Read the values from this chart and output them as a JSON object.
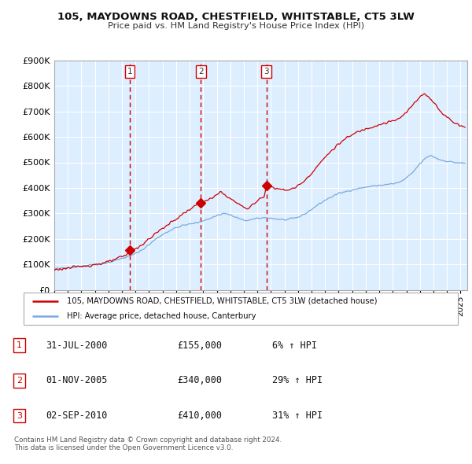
{
  "title": "105, MAYDOWNS ROAD, CHESTFIELD, WHITSTABLE, CT5 3LW",
  "subtitle": "Price paid vs. HM Land Registry's House Price Index (HPI)",
  "legend_line1": "105, MAYDOWNS ROAD, CHESTFIELD, WHITSTABLE, CT5 3LW (detached house)",
  "legend_line2": "HPI: Average price, detached house, Canterbury",
  "footer": "Contains HM Land Registry data © Crown copyright and database right 2024.\nThis data is licensed under the Open Government Licence v3.0.",
  "sales": [
    {
      "num": 1,
      "date": "31-JUL-2000",
      "price": 155000,
      "pct": "6%",
      "dir": "↑"
    },
    {
      "num": 2,
      "date": "01-NOV-2005",
      "price": 340000,
      "pct": "29%",
      "dir": "↑"
    },
    {
      "num": 3,
      "date": "02-SEP-2010",
      "price": 410000,
      "pct": "31%",
      "dir": "↑"
    }
  ],
  "sale_years": [
    2000.58,
    2005.83,
    2010.67
  ],
  "sale_prices": [
    155000,
    340000,
    410000
  ],
  "vline_color": "#cc0000",
  "price_line_color": "#cc0000",
  "hpi_line_color": "#7aaadd",
  "plot_bg_color": "#ddeeff",
  "ylim": [
    0,
    900000
  ],
  "yticks": [
    0,
    100000,
    200000,
    300000,
    400000,
    500000,
    600000,
    700000,
    800000,
    900000
  ],
  "xlim_start": 1995.0,
  "xlim_end": 2025.5,
  "background_color": "#ffffff",
  "grid_color": "#cccccc"
}
